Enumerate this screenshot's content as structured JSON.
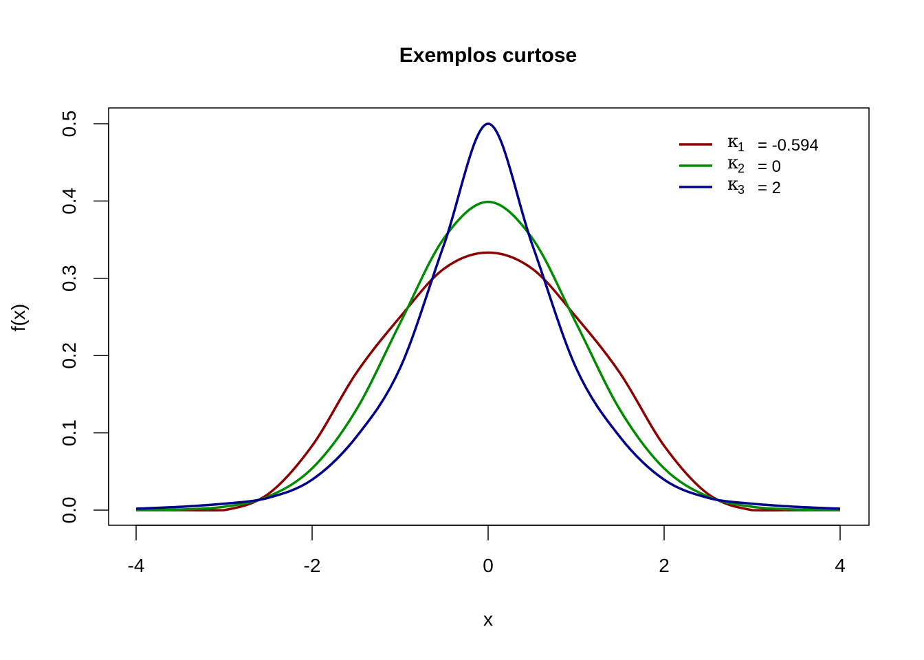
{
  "chart_data": {
    "type": "line",
    "title": "Exemplos curtose",
    "xlabel": "x",
    "ylabel": "f(x)",
    "xlim": [
      -4,
      4
    ],
    "ylim": [
      0,
      0.5
    ],
    "xticks": [
      -4,
      -2,
      0,
      2,
      4
    ],
    "xtick_labels": [
      "-4",
      "-2",
      "0",
      "2",
      "4"
    ],
    "yticks": [
      0,
      0.1,
      0.2,
      0.3,
      0.4,
      0.5
    ],
    "ytick_labels": [
      "0.0",
      "0.1",
      "0.2",
      "0.3",
      "0.4",
      "0.5"
    ],
    "grid": false,
    "legend_position": "top-right",
    "legend": [
      {
        "symbol": "κ",
        "sub": "1",
        "text": "= -0.594"
      },
      {
        "symbol": "κ",
        "sub": "2",
        "text": "= 0"
      },
      {
        "symbol": "κ",
        "sub": "3",
        "text": "= 2"
      }
    ],
    "x": [
      -4,
      -3.5,
      -3,
      -2.5,
      -2,
      -1.5,
      -1,
      -0.5,
      0,
      0.5,
      1,
      1.5,
      2,
      2.5,
      3,
      3.5,
      4
    ],
    "series": [
      {
        "color": "#8b0000",
        "values": [
          0,
          0,
          0,
          0.0208,
          0.0833,
          0.1771,
          0.25,
          0.3125,
          0.3333,
          0.3125,
          0.25,
          0.1771,
          0.0833,
          0.0208,
          0,
          0,
          0
        ]
      },
      {
        "color": "#008b00",
        "values": [
          0.0001,
          0.0009,
          0.0044,
          0.0175,
          0.054,
          0.1295,
          0.242,
          0.3521,
          0.3989,
          0.3521,
          0.242,
          0.1295,
          0.054,
          0.0175,
          0.0044,
          0.0009,
          0.0001
        ]
      },
      {
        "color": "#00008b",
        "values": [
          0.0018,
          0.0043,
          0.0083,
          0.0159,
          0.0394,
          0.0944,
          0.1839,
          0.344,
          0.5,
          0.344,
          0.1839,
          0.0944,
          0.0394,
          0.0159,
          0.0083,
          0.0043,
          0.0018
        ]
      }
    ]
  }
}
